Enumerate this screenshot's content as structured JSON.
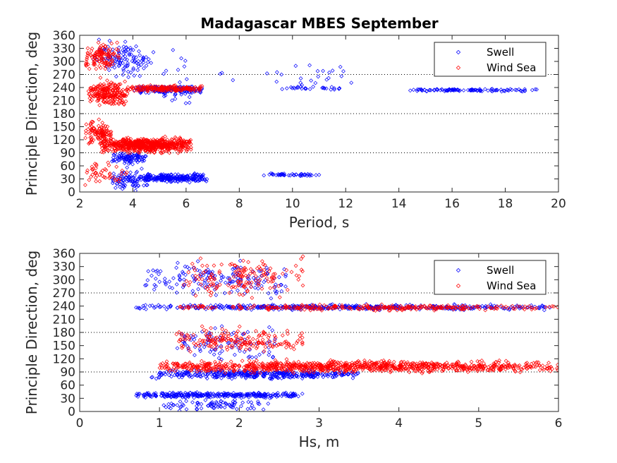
{
  "figure": {
    "title": "Madagascar MBES September",
    "colors": {
      "swell": "#0000ff",
      "wind_sea": "#ff0000",
      "axis": "#262626",
      "ref_line": "#000000"
    }
  },
  "chart_data": [
    {
      "type": "scatter",
      "name": "direction-vs-period",
      "xlabel": "Period, s",
      "ylabel": "Principle Direction, deg",
      "xlim": [
        2,
        20
      ],
      "ylim": [
        0,
        360
      ],
      "xticks": [
        2,
        4,
        6,
        8,
        10,
        12,
        14,
        16,
        18,
        20
      ],
      "yticks": [
        0,
        30,
        60,
        90,
        120,
        150,
        180,
        210,
        240,
        270,
        300,
        330,
        360
      ],
      "reference_lines_y": [
        90,
        180,
        270
      ],
      "grid": false,
      "legend": {
        "position": "top-right",
        "entries": [
          "Swell",
          "Wind Sea"
        ]
      },
      "series": [
        {
          "name": "Swell",
          "marker": "diamond",
          "color": "#0000ff",
          "clusters": [
            {
              "x": [
                4.0,
                6.6
              ],
              "y": [
                225,
                245
              ],
              "n": 200
            },
            {
              "x": [
                9.5,
                11.8
              ],
              "y": [
                234,
                244
              ],
              "n": 28
            },
            {
              "x": [
                14.3,
                19.2
              ],
              "y": [
                230,
                238
              ],
              "n": 110
            },
            {
              "x": [
                4.4,
                6.8
              ],
              "y": [
                20,
                45
              ],
              "n": 240
            },
            {
              "x": [
                8.9,
                11.0
              ],
              "y": [
                35,
                45
              ],
              "n": 45
            },
            {
              "x": [
                3.2,
                4.6
              ],
              "y": [
                0,
                60
              ],
              "n": 90
            },
            {
              "x": [
                3.2,
                4.5
              ],
              "y": [
                60,
                95
              ],
              "n": 90
            },
            {
              "x": [
                2.5,
                4.8
              ],
              "y": [
                255,
                360
              ],
              "n": 120
            },
            {
              "x": [
                5.0,
                6.2
              ],
              "y": [
                150,
                360
              ],
              "n": 25
            },
            {
              "x": [
                7.0,
                13.0
              ],
              "y": [
                225,
                310
              ],
              "n": 25
            }
          ]
        },
        {
          "name": "Wind Sea",
          "marker": "diamond",
          "color": "#ff0000",
          "clusters": [
            {
              "x": [
                2.8,
                6.2
              ],
              "y": [
                85,
                130
              ],
              "n": 650
            },
            {
              "x": [
                2.2,
                3.2
              ],
              "y": [
                100,
                170
              ],
              "n": 110
            },
            {
              "x": [
                2.3,
                3.8
              ],
              "y": [
                190,
                265
              ],
              "n": 230
            },
            {
              "x": [
                3.8,
                6.8
              ],
              "y": [
                228,
                248
              ],
              "n": 170
            },
            {
              "x": [
                2.2,
                3.5
              ],
              "y": [
                270,
                350
              ],
              "n": 120
            },
            {
              "x": [
                2.2,
                3.8
              ],
              "y": [
                0,
                80
              ],
              "n": 45
            }
          ]
        }
      ]
    },
    {
      "type": "scatter",
      "name": "direction-vs-hs",
      "xlabel": "Hs, m",
      "ylabel": "Principle Direction, deg",
      "xlim": [
        0,
        6
      ],
      "ylim": [
        0,
        360
      ],
      "xticks": [
        0,
        1,
        2,
        3,
        4,
        5,
        6
      ],
      "yticks": [
        0,
        30,
        60,
        90,
        120,
        150,
        180,
        210,
        240,
        270,
        300,
        330,
        360
      ],
      "reference_lines_y": [
        90,
        180,
        270
      ],
      "grid": false,
      "legend": {
        "position": "top-right",
        "entries": [
          "Swell",
          "Wind Sea"
        ]
      },
      "series": [
        {
          "name": "Swell",
          "marker": "diamond",
          "color": "#0000ff",
          "clusters": [
            {
              "x": [
                0.7,
                5.9
              ],
              "y": [
                230,
                245
              ],
              "n": 450
            },
            {
              "x": [
                0.9,
                3.5
              ],
              "y": [
                70,
                100
              ],
              "n": 380
            },
            {
              "x": [
                0.7,
                2.8
              ],
              "y": [
                30,
                45
              ],
              "n": 300
            },
            {
              "x": [
                1.0,
                2.4
              ],
              "y": [
                0,
                30
              ],
              "n": 80
            },
            {
              "x": [
                0.8,
                2.6
              ],
              "y": [
                250,
                360
              ],
              "n": 160
            },
            {
              "x": [
                1.2,
                2.5
              ],
              "y": [
                100,
                210
              ],
              "n": 90
            }
          ]
        },
        {
          "name": "Wind Sea",
          "marker": "diamond",
          "color": "#ff0000",
          "clusters": [
            {
              "x": [
                1.0,
                6.0
              ],
              "y": [
                85,
                120
              ],
              "n": 950
            },
            {
              "x": [
                1.2,
                2.8
              ],
              "y": [
                120,
                200
              ],
              "n": 180
            },
            {
              "x": [
                1.2,
                6.0
              ],
              "y": [
                228,
                245
              ],
              "n": 280
            },
            {
              "x": [
                1.3,
                2.8
              ],
              "y": [
                250,
                360
              ],
              "n": 150
            }
          ]
        }
      ]
    }
  ]
}
